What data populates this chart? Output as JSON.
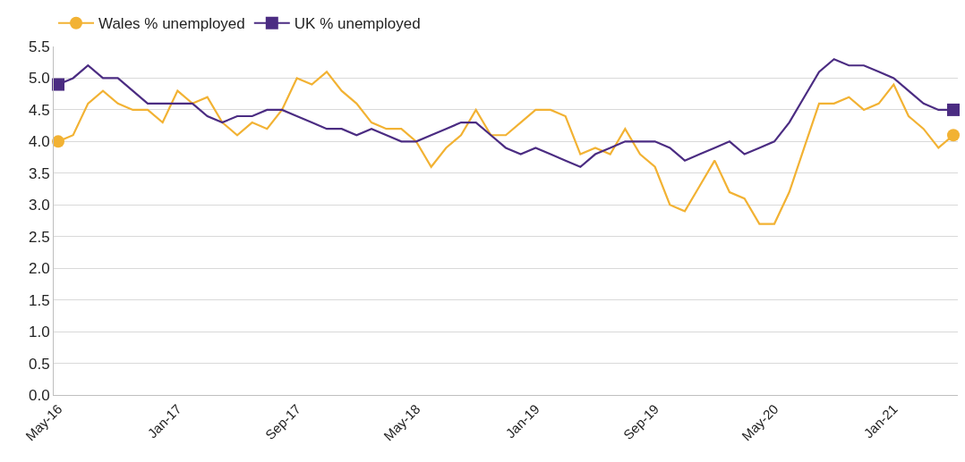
{
  "chart_data": {
    "type": "line",
    "categories": [
      "May-16",
      null,
      null,
      null,
      null,
      null,
      null,
      null,
      "Jan-17",
      null,
      null,
      null,
      null,
      null,
      null,
      null,
      "Sep-17",
      null,
      null,
      null,
      null,
      null,
      null,
      null,
      "May-18",
      null,
      null,
      null,
      null,
      null,
      null,
      null,
      "Jan-19",
      null,
      null,
      null,
      null,
      null,
      null,
      null,
      "Sep-19",
      null,
      null,
      null,
      null,
      null,
      null,
      null,
      "May-20",
      null,
      null,
      null,
      null,
      null,
      null,
      null,
      "Jan-21",
      null,
      null,
      null,
      null
    ],
    "series": [
      {
        "name": "Wales % unemployed",
        "color": "#f2b233",
        "values": [
          4.0,
          4.1,
          4.6,
          4.8,
          4.6,
          4.5,
          4.5,
          4.3,
          4.8,
          4.6,
          4.7,
          4.3,
          4.1,
          4.3,
          4.2,
          4.5,
          5.0,
          4.9,
          5.1,
          4.8,
          4.6,
          4.3,
          4.2,
          4.2,
          4.0,
          3.6,
          3.9,
          4.1,
          4.5,
          4.1,
          4.1,
          4.3,
          4.5,
          4.5,
          4.4,
          3.8,
          3.9,
          3.8,
          4.2,
          3.8,
          3.6,
          3.0,
          2.9,
          3.3,
          3.7,
          3.2,
          3.1,
          2.7,
          2.7,
          3.2,
          3.9,
          4.6,
          4.6,
          4.7,
          4.5,
          4.6,
          4.9,
          4.4,
          4.2,
          3.9,
          4.1
        ]
      },
      {
        "name": "UK % unemployed",
        "color": "#4b2c82",
        "values": [
          4.9,
          5.0,
          5.2,
          5.0,
          5.0,
          4.8,
          4.6,
          4.6,
          4.6,
          4.6,
          4.4,
          4.3,
          4.4,
          4.4,
          4.5,
          4.5,
          4.4,
          4.3,
          4.2,
          4.2,
          4.1,
          4.2,
          4.1,
          4.0,
          4.0,
          4.1,
          4.2,
          4.3,
          4.3,
          4.1,
          3.9,
          3.8,
          3.9,
          3.8,
          3.7,
          3.6,
          3.8,
          3.9,
          4.0,
          4.0,
          4.0,
          3.9,
          3.7,
          3.8,
          3.9,
          4.0,
          3.8,
          3.9,
          4.0,
          4.3,
          4.7,
          5.1,
          5.3,
          5.2,
          5.2,
          5.1,
          5.0,
          4.8,
          4.6,
          4.5,
          4.5
        ]
      }
    ],
    "ylim": [
      0,
      5.5
    ],
    "yticks": [
      {
        "value": 0,
        "label": "0.0"
      },
      {
        "value": 0.5,
        "label": "0.5"
      },
      {
        "value": 1,
        "label": "1.0"
      },
      {
        "value": 1.5,
        "label": "1.5"
      },
      {
        "value": 2,
        "label": "2.0"
      },
      {
        "value": 2.5,
        "label": "2.5"
      },
      {
        "value": 3,
        "label": "3.0"
      },
      {
        "value": 3.5,
        "label": "3.5"
      },
      {
        "value": 4,
        "label": "4.0"
      },
      {
        "value": 4.5,
        "label": "4.5"
      },
      {
        "value": 5,
        "label": "5.0"
      },
      {
        "value": 5.5,
        "label": "5.5"
      }
    ],
    "grid": "y",
    "legend": "top left"
  }
}
